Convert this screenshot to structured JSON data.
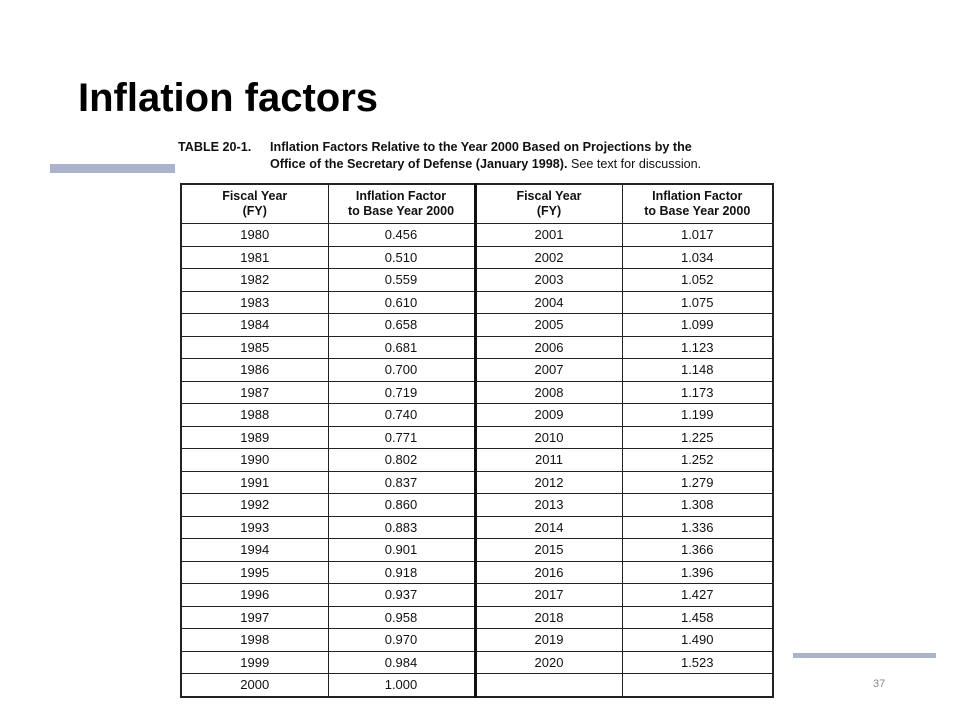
{
  "slide": {
    "title": "Inflation factors",
    "page_number": "37",
    "accent_color": "#aab3c9"
  },
  "table": {
    "caption_label": "TABLE 20-1.",
    "caption_line1": "Inflation Factors Relative to the Year 2000 Based on Projections by the",
    "caption_line2": "Office of the Secretary of Defense (January 1998).",
    "caption_note": "See text for discussion.",
    "headers": [
      {
        "line1": "Fiscal Year",
        "line2": "(FY)"
      },
      {
        "line1": "Inflation Factor",
        "line2": "to Base Year 2000"
      },
      {
        "line1": "Fiscal Year",
        "line2": "(FY)"
      },
      {
        "line1": "Inflation Factor",
        "line2": "to Base Year 2000"
      }
    ],
    "rows": [
      [
        "1980",
        "0.456",
        "2001",
        "1.017"
      ],
      [
        "1981",
        "0.510",
        "2002",
        "1.034"
      ],
      [
        "1982",
        "0.559",
        "2003",
        "1.052"
      ],
      [
        "1983",
        "0.610",
        "2004",
        "1.075"
      ],
      [
        "1984",
        "0.658",
        "2005",
        "1.099"
      ],
      [
        "1985",
        "0.681",
        "2006",
        "1.123"
      ],
      [
        "1986",
        "0.700",
        "2007",
        "1.148"
      ],
      [
        "1987",
        "0.719",
        "2008",
        "1.173"
      ],
      [
        "1988",
        "0.740",
        "2009",
        "1.199"
      ],
      [
        "1989",
        "0.771",
        "2010",
        "1.225"
      ],
      [
        "1990",
        "0.802",
        "2011",
        "1.252"
      ],
      [
        "1991",
        "0.837",
        "2012",
        "1.279"
      ],
      [
        "1992",
        "0.860",
        "2013",
        "1.308"
      ],
      [
        "1993",
        "0.883",
        "2014",
        "1.336"
      ],
      [
        "1994",
        "0.901",
        "2015",
        "1.366"
      ],
      [
        "1995",
        "0.918",
        "2016",
        "1.396"
      ],
      [
        "1996",
        "0.937",
        "2017",
        "1.427"
      ],
      [
        "1997",
        "0.958",
        "2018",
        "1.458"
      ],
      [
        "1998",
        "0.970",
        "2019",
        "1.490"
      ],
      [
        "1999",
        "0.984",
        "2020",
        "1.523"
      ],
      [
        "2000",
        "1.000",
        "",
        ""
      ]
    ]
  }
}
